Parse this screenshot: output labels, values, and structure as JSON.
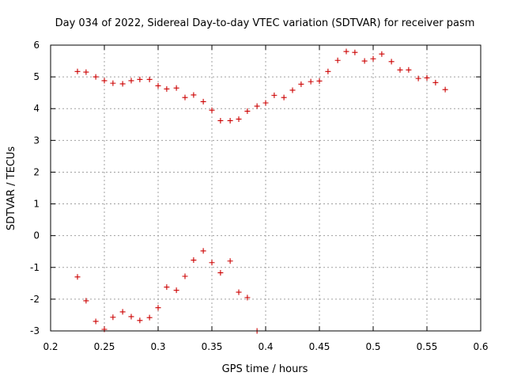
{
  "chart_data": {
    "type": "scatter",
    "title": "Day 034 of 2022, Sidereal Day-to-day VTEC variation (SDTVAR) for receiver pasm",
    "xlabel": "GPS time / hours",
    "ylabel": "SDTVAR / TECUs",
    "xlim": [
      0.2,
      0.6
    ],
    "ylim": [
      -3,
      6
    ],
    "x_ticks": [
      "0.2",
      "0.25",
      "0.3",
      "0.35",
      "0.4",
      "0.45",
      "0.5",
      "0.55",
      "0.6"
    ],
    "y_ticks": [
      "-3",
      "-2",
      "-1",
      "0",
      "1",
      "2",
      "3",
      "4",
      "5",
      "6"
    ],
    "grid": true,
    "marker": "+",
    "marker_color": "#cc0000",
    "series": [
      {
        "name": "upper",
        "x": [
          0.225,
          0.233,
          0.242,
          0.25,
          0.258,
          0.267,
          0.275,
          0.283,
          0.292,
          0.3,
          0.308,
          0.317,
          0.325,
          0.333,
          0.342,
          0.35,
          0.358,
          0.367,
          0.375,
          0.383,
          0.392,
          0.4,
          0.408,
          0.417,
          0.425,
          0.433,
          0.442,
          0.45,
          0.458,
          0.467,
          0.475,
          0.483,
          0.492,
          0.5,
          0.508,
          0.517,
          0.525,
          0.533,
          0.542,
          0.55,
          0.558,
          0.567
        ],
        "y": [
          5.17,
          5.15,
          5.0,
          4.88,
          4.8,
          4.78,
          4.88,
          4.92,
          4.92,
          4.72,
          4.62,
          4.65,
          4.35,
          4.43,
          4.22,
          3.95,
          3.62,
          3.62,
          3.67,
          3.92,
          4.08,
          4.18,
          4.42,
          4.35,
          4.58,
          4.77,
          4.85,
          4.87,
          5.17,
          5.52,
          5.8,
          5.77,
          5.5,
          5.57,
          5.72,
          5.48,
          5.22,
          5.22,
          4.95,
          4.97,
          4.82,
          4.6
        ]
      },
      {
        "name": "lower",
        "x": [
          0.225,
          0.233,
          0.242,
          0.25,
          0.258,
          0.267,
          0.275,
          0.283,
          0.292,
          0.3,
          0.308,
          0.317,
          0.325,
          0.333,
          0.342,
          0.35,
          0.358,
          0.367,
          0.375,
          0.383,
          0.392
        ],
        "y": [
          -1.3,
          -2.05,
          -2.7,
          -2.95,
          -2.57,
          -2.4,
          -2.55,
          -2.67,
          -2.58,
          -2.27,
          -1.62,
          -1.72,
          -1.28,
          -0.77,
          -0.48,
          -0.85,
          -1.17,
          -0.8,
          -1.78,
          -1.95,
          -3.0
        ]
      }
    ]
  }
}
